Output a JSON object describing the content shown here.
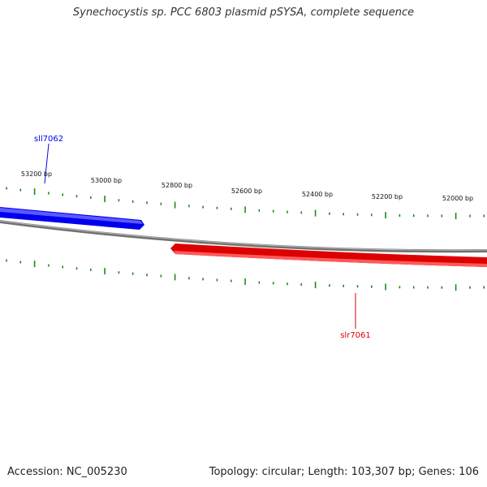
{
  "title": "Synechocystis sp. PCC 6803 plasmid pSYSA, complete sequence",
  "accession": "Accession: NC_005230",
  "stats": "Topology: circular; Length: 103,307 bp; Genes: 106",
  "ruler_labels": [
    "53200 bp",
    "53000 bp",
    "52800 bp",
    "52600 bp",
    "52400 bp",
    "52200 bp",
    "52000 bp"
  ],
  "genes": [
    {
      "name": "sll7062",
      "strand": "minus",
      "color": "#0000ee"
    },
    {
      "name": "slr7061",
      "strand": "plus",
      "color": "#e00000"
    }
  ],
  "colors": {
    "tick": "#1a8a1a",
    "backbone": "#808080"
  }
}
